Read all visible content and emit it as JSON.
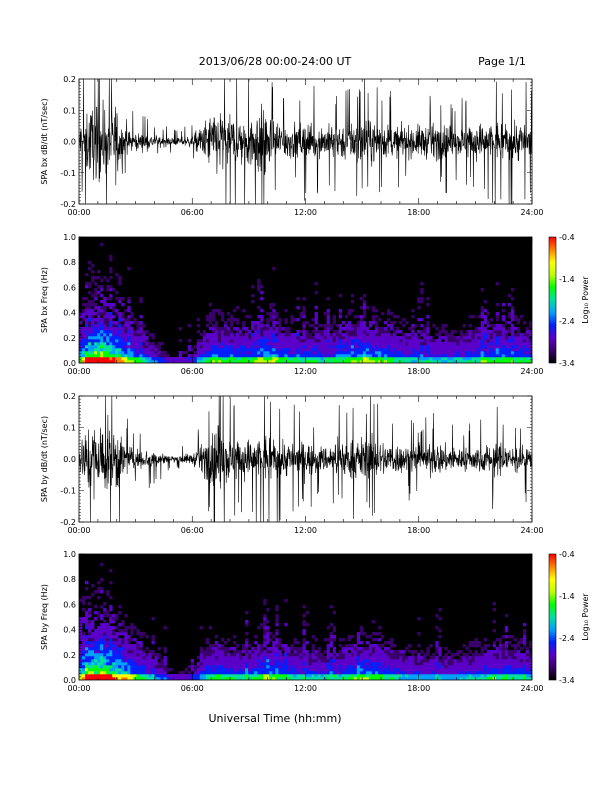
{
  "header": {
    "date_range": "2013/06/28  00:00-24:00 UT",
    "page": "Page 1/1"
  },
  "footer": {
    "xlabel": "Universal Time (hh:mm)"
  },
  "colors": {
    "trace": "#000000",
    "spectrogram_background": "#000000",
    "colormap": [
      "#000000",
      "#3a006a",
      "#5a00c8",
      "#0020ff",
      "#00a0ff",
      "#00e0a0",
      "#00ff00",
      "#c0ff00",
      "#ffff00",
      "#ff8000",
      "#ff0000"
    ]
  },
  "chart_data": [
    {
      "type": "line",
      "ylabel": "SPA bx dB/dt (nT/sec)",
      "xlim": [
        "00:00",
        "24:00"
      ],
      "xticks": [
        "00:00",
        "06:00",
        "12:00",
        "18:00",
        "24:00"
      ],
      "ylim": [
        -0.2,
        0.2
      ],
      "yticks": [
        "0.2",
        "0.1",
        "0.0",
        "-0.1",
        "-0.2"
      ],
      "series": [
        {
          "values": [
            {
              "x": "00:00",
              "amp": 0.1
            },
            {
              "x": "00:30",
              "amp": 0.2
            },
            {
              "x": "01:00",
              "amp": 0.2
            },
            {
              "x": "01:30",
              "amp": 0.2
            },
            {
              "x": "02:00",
              "amp": 0.2
            },
            {
              "x": "02:30",
              "amp": 0.06
            },
            {
              "x": "03:00",
              "amp": 0.05
            },
            {
              "x": "04:00",
              "amp": 0.035
            },
            {
              "x": "05:00",
              "amp": 0.02
            },
            {
              "x": "06:00",
              "amp": 0.03
            },
            {
              "x": "06:30",
              "amp": 0.09
            },
            {
              "x": "07:00",
              "amp": 0.16
            },
            {
              "x": "07:30",
              "amp": 0.2
            },
            {
              "x": "08:00",
              "amp": 0.14
            },
            {
              "x": "09:00",
              "amp": 0.15
            },
            {
              "x": "09:30",
              "amp": 0.2
            },
            {
              "x": "10:00",
              "amp": 0.16
            },
            {
              "x": "11:00",
              "amp": 0.1
            },
            {
              "x": "12:00",
              "amp": 0.1
            },
            {
              "x": "13:00",
              "amp": 0.09
            },
            {
              "x": "14:00",
              "amp": 0.1
            },
            {
              "x": "15:00",
              "amp": 0.13
            },
            {
              "x": "16:00",
              "amp": 0.1
            },
            {
              "x": "17:00",
              "amp": 0.08
            },
            {
              "x": "18:00",
              "amp": 0.09
            },
            {
              "x": "19:00",
              "amp": 0.1
            },
            {
              "x": "20:00",
              "amp": 0.08
            },
            {
              "x": "21:00",
              "amp": 0.1
            },
            {
              "x": "22:00",
              "amp": 0.11
            },
            {
              "x": "23:00",
              "amp": 0.12
            },
            {
              "x": "24:00",
              "amp": 0.1
            }
          ]
        }
      ]
    },
    {
      "type": "heatmap",
      "ylabel": "SPA bx Freq (Hz)",
      "xlim": [
        "00:00",
        "24:00"
      ],
      "xticks": [
        "00:00",
        "06:00",
        "12:00",
        "18:00",
        "24:00"
      ],
      "ylim": [
        0.0,
        1.0
      ],
      "yticks": [
        "1.0",
        "0.8",
        "0.6",
        "0.4",
        "0.2",
        "0.0"
      ],
      "colorbar": {
        "label": "Log₁₀ Power",
        "range": [
          -3.4,
          -0.4
        ],
        "ticks": [
          "-0.4",
          "-1.4",
          "-2.4",
          "-3.4"
        ]
      },
      "activity": [
        {
          "x": "00:00",
          "level": 0.5
        },
        {
          "x": "00:30",
          "level": 0.9
        },
        {
          "x": "01:00",
          "level": 1.0
        },
        {
          "x": "01:30",
          "level": 0.9
        },
        {
          "x": "02:00",
          "level": 0.8
        },
        {
          "x": "03:00",
          "level": 0.5
        },
        {
          "x": "04:00",
          "level": 0.3
        },
        {
          "x": "05:00",
          "level": 0.15
        },
        {
          "x": "06:00",
          "level": 0.2
        },
        {
          "x": "07:00",
          "level": 0.55
        },
        {
          "x": "08:00",
          "level": 0.5
        },
        {
          "x": "09:00",
          "level": 0.5
        },
        {
          "x": "10:00",
          "level": 0.6
        },
        {
          "x": "11:00",
          "level": 0.5
        },
        {
          "x": "12:00",
          "level": 0.45
        },
        {
          "x": "13:00",
          "level": 0.45
        },
        {
          "x": "14:00",
          "level": 0.5
        },
        {
          "x": "15:00",
          "level": 0.6
        },
        {
          "x": "16:00",
          "level": 0.55
        },
        {
          "x": "17:00",
          "level": 0.45
        },
        {
          "x": "18:00",
          "level": 0.4
        },
        {
          "x": "19:00",
          "level": 0.4
        },
        {
          "x": "20:00",
          "level": 0.4
        },
        {
          "x": "21:00",
          "level": 0.45
        },
        {
          "x": "22:00",
          "level": 0.5
        },
        {
          "x": "23:00",
          "level": 0.5
        },
        {
          "x": "24:00",
          "level": 0.45
        }
      ]
    },
    {
      "type": "line",
      "ylabel": "SPA by dB/dt (nT/sec)",
      "xlim": [
        "00:00",
        "24:00"
      ],
      "xticks": [
        "00:00",
        "06:00",
        "12:00",
        "18:00",
        "24:00"
      ],
      "ylim": [
        -0.2,
        0.2
      ],
      "yticks": [
        "0.2",
        "0.1",
        "0.0",
        "-0.1",
        "-0.2"
      ],
      "series": [
        {
          "values": [
            {
              "x": "00:00",
              "amp": 0.08
            },
            {
              "x": "00:30",
              "amp": 0.2
            },
            {
              "x": "01:00",
              "amp": 0.2
            },
            {
              "x": "01:30",
              "amp": 0.2
            },
            {
              "x": "02:00",
              "amp": 0.2
            },
            {
              "x": "02:30",
              "amp": 0.07
            },
            {
              "x": "03:00",
              "amp": 0.06
            },
            {
              "x": "04:00",
              "amp": 0.045
            },
            {
              "x": "05:00",
              "amp": 0.02
            },
            {
              "x": "06:00",
              "amp": 0.03
            },
            {
              "x": "06:30",
              "amp": 0.08
            },
            {
              "x": "07:00",
              "amp": 0.14
            },
            {
              "x": "07:30",
              "amp": 0.2
            },
            {
              "x": "08:00",
              "amp": 0.12
            },
            {
              "x": "09:00",
              "amp": 0.11
            },
            {
              "x": "10:00",
              "amp": 0.14
            },
            {
              "x": "11:00",
              "amp": 0.1
            },
            {
              "x": "12:00",
              "amp": 0.09
            },
            {
              "x": "13:00",
              "amp": 0.07
            },
            {
              "x": "14:00",
              "amp": 0.1
            },
            {
              "x": "15:00",
              "amp": 0.12
            },
            {
              "x": "16:00",
              "amp": 0.1
            },
            {
              "x": "17:00",
              "amp": 0.08
            },
            {
              "x": "18:00",
              "amp": 0.07
            },
            {
              "x": "19:00",
              "amp": 0.09
            },
            {
              "x": "20:00",
              "amp": 0.06
            },
            {
              "x": "21:00",
              "amp": 0.07
            },
            {
              "x": "22:00",
              "amp": 0.09
            },
            {
              "x": "23:00",
              "amp": 0.08
            },
            {
              "x": "24:00",
              "amp": 0.07
            }
          ]
        }
      ]
    },
    {
      "type": "heatmap",
      "ylabel": "SPA by Freq (Hz)",
      "xlim": [
        "00:00",
        "24:00"
      ],
      "xticks": [
        "00:00",
        "06:00",
        "12:00",
        "18:00",
        "24:00"
      ],
      "ylim": [
        0.0,
        1.0
      ],
      "yticks": [
        "1.0",
        "0.8",
        "0.6",
        "0.4",
        "0.2",
        "0.0"
      ],
      "colorbar": {
        "label": "Log₁₀ Power",
        "range": [
          -3.4,
          -0.4
        ],
        "ticks": [
          "-0.4",
          "-1.4",
          "-2.4",
          "-3.4"
        ]
      },
      "activity": [
        {
          "x": "00:00",
          "level": 0.55
        },
        {
          "x": "00:30",
          "level": 0.95
        },
        {
          "x": "01:00",
          "level": 1.0
        },
        {
          "x": "01:30",
          "level": 0.9
        },
        {
          "x": "02:00",
          "level": 0.8
        },
        {
          "x": "03:00",
          "level": 0.55
        },
        {
          "x": "04:00",
          "level": 0.35
        },
        {
          "x": "05:00",
          "level": 0.15
        },
        {
          "x": "06:00",
          "level": 0.2
        },
        {
          "x": "07:00",
          "level": 0.5
        },
        {
          "x": "08:00",
          "level": 0.45
        },
        {
          "x": "09:00",
          "level": 0.45
        },
        {
          "x": "10:00",
          "level": 0.55
        },
        {
          "x": "11:00",
          "level": 0.45
        },
        {
          "x": "12:00",
          "level": 0.4
        },
        {
          "x": "13:00",
          "level": 0.4
        },
        {
          "x": "14:00",
          "level": 0.45
        },
        {
          "x": "15:00",
          "level": 0.55
        },
        {
          "x": "16:00",
          "level": 0.5
        },
        {
          "x": "17:00",
          "level": 0.4
        },
        {
          "x": "18:00",
          "level": 0.35
        },
        {
          "x": "19:00",
          "level": 0.35
        },
        {
          "x": "20:00",
          "level": 0.35
        },
        {
          "x": "21:00",
          "level": 0.4
        },
        {
          "x": "22:00",
          "level": 0.45
        },
        {
          "x": "23:00",
          "level": 0.45
        },
        {
          "x": "24:00",
          "level": 0.4
        }
      ]
    }
  ]
}
